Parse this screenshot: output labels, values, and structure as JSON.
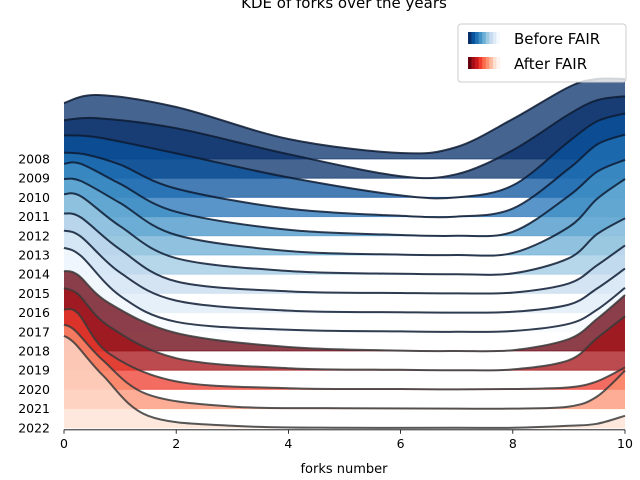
{
  "chart_data": {
    "type": "area",
    "subtype": "ridgeline-kde",
    "title": "KDE of forks over the years",
    "xlabel": "forks number",
    "ylabel": "",
    "xlim": [
      0,
      10
    ],
    "xticks": [
      0,
      2,
      4,
      6,
      8,
      10
    ],
    "grid": false,
    "legend": {
      "placement": "top-right",
      "entries": [
        {
          "label": "Before FAIR",
          "palette": "blues",
          "colors": [
            "#08306b",
            "#08519c",
            "#2171b5",
            "#4292c6",
            "#6baed6",
            "#9ecae1",
            "#c6dbef",
            "#deebf7",
            "#f7fbff"
          ]
        },
        {
          "label": "After FAIR",
          "palette": "reds",
          "colors": [
            "#67000d",
            "#a50f15",
            "#cb181d",
            "#ef3b2c",
            "#fb6a4a",
            "#fc9272",
            "#fcbba1",
            "#fee0d2",
            "#fff5f0"
          ]
        }
      ]
    },
    "series": [
      {
        "name": "2008",
        "group": "Before FAIR",
        "color": "#08306b",
        "x": [
          0,
          0.6,
          2,
          4,
          6,
          7,
          8,
          9,
          9.5,
          10
        ],
        "y": [
          1.4,
          1.6,
          1.3,
          0.5,
          0.15,
          0.3,
          1.0,
          1.8,
          2.0,
          2.0
        ]
      },
      {
        "name": "2009",
        "group": "Before FAIR",
        "color": "#08306b",
        "x": [
          0,
          0.6,
          2,
          4,
          6,
          7,
          8,
          9,
          9.5,
          10
        ],
        "y": [
          1.45,
          1.5,
          1.25,
          0.6,
          0.05,
          0.1,
          0.7,
          1.6,
          1.95,
          2.05
        ]
      },
      {
        "name": "2010",
        "group": "Before FAIR",
        "color": "#08519c",
        "x": [
          0,
          0.6,
          2,
          4,
          6,
          7,
          8,
          9,
          9.5,
          10
        ],
        "y": [
          1.55,
          1.5,
          1.1,
          0.5,
          0.05,
          0.0,
          0.3,
          1.4,
          1.9,
          2.1
        ]
      },
      {
        "name": "2011",
        "group": "Before FAIR",
        "color": "#2171b5",
        "x": [
          0,
          0.4,
          1,
          2,
          4,
          6,
          7,
          8,
          9,
          9.5,
          10
        ],
        "y": [
          1.6,
          1.55,
          1.3,
          0.7,
          0.2,
          0.02,
          0.0,
          0.2,
          1.2,
          1.8,
          2.05
        ]
      },
      {
        "name": "2012",
        "group": "Before FAIR",
        "color": "#4292c6",
        "x": [
          0,
          0.3,
          1,
          2,
          4,
          6,
          7,
          8,
          9,
          9.5,
          10
        ],
        "y": [
          1.8,
          1.8,
          1.3,
          0.6,
          0.15,
          0.02,
          0.0,
          0.1,
          1.0,
          1.6,
          1.9
        ]
      },
      {
        "name": "2013",
        "group": "Before FAIR",
        "color": "#6baed6",
        "x": [
          0,
          0.3,
          1,
          2,
          4,
          6,
          7,
          8,
          9,
          9.5,
          10
        ],
        "y": [
          1.9,
          1.85,
          1.3,
          0.5,
          0.1,
          0.01,
          0.0,
          0.05,
          0.7,
          1.4,
          1.9
        ]
      },
      {
        "name": "2014",
        "group": "Before FAIR",
        "color": "#9ecae1",
        "x": [
          0,
          0.3,
          1,
          2,
          4,
          6,
          7,
          8,
          9,
          9.5,
          10
        ],
        "y": [
          2.0,
          1.95,
          1.2,
          0.4,
          0.08,
          0.01,
          0.0,
          0.02,
          0.4,
          1.0,
          1.4
        ]
      },
      {
        "name": "2015",
        "group": "Before FAIR",
        "color": "#c6dbef",
        "x": [
          0,
          0.3,
          1,
          2,
          4,
          6,
          7,
          8,
          9,
          9.5,
          10
        ],
        "y": [
          2.0,
          1.9,
          1.1,
          0.3,
          0.05,
          0.01,
          0.0,
          0.02,
          0.25,
          0.7,
          1.2
        ]
      },
      {
        "name": "2016",
        "group": "Before FAIR",
        "color": "#deebf7",
        "x": [
          0,
          0.3,
          1,
          2,
          4,
          6,
          7,
          8,
          9,
          9.5,
          10
        ],
        "y": [
          2.05,
          1.9,
          1.0,
          0.3,
          0.05,
          0.01,
          0.0,
          0.02,
          0.2,
          0.6,
          1.1
        ]
      },
      {
        "name": "2017",
        "group": "Before FAIR",
        "color": "#f7fbff",
        "x": [
          0,
          0.3,
          1,
          2,
          4,
          6,
          7,
          8,
          9,
          9.5,
          10
        ],
        "y": [
          2.1,
          1.9,
          0.9,
          0.25,
          0.05,
          0.01,
          0.0,
          0.02,
          0.2,
          0.55,
          1.1
        ]
      },
      {
        "name": "2018",
        "group": "After FAIR",
        "color": "#67000d",
        "x": [
          0,
          0.25,
          0.8,
          2,
          4,
          6,
          7,
          8,
          9,
          9.5,
          10
        ],
        "y": [
          2.0,
          1.9,
          1.2,
          0.45,
          0.1,
          0.01,
          0.0,
          0.02,
          0.3,
          0.8,
          1.4
        ]
      },
      {
        "name": "2019",
        "group": "After FAIR",
        "color": "#a50f15",
        "x": [
          0,
          0.25,
          0.8,
          2,
          4,
          6,
          7,
          8,
          9,
          9.5,
          10
        ],
        "y": [
          2.05,
          1.9,
          1.1,
          0.3,
          0.05,
          0.01,
          0.0,
          0.02,
          0.25,
          0.8,
          1.35
        ]
      },
      {
        "name": "2020",
        "group": "After FAIR",
        "color": "#ef3b2c",
        "x": [
          0,
          0.25,
          0.8,
          2,
          4,
          6,
          7,
          8,
          9,
          9.5,
          10
        ],
        "y": [
          2.0,
          1.9,
          0.9,
          0.2,
          0.03,
          0.01,
          0.0,
          0.01,
          0.05,
          0.2,
          0.55
        ]
      },
      {
        "name": "2021",
        "group": "After FAIR",
        "color": "#fc9272",
        "x": [
          0,
          0.2,
          0.7,
          1.5,
          3,
          5,
          7,
          8,
          9,
          9.5,
          10
        ],
        "y": [
          2.1,
          1.95,
          1.2,
          0.35,
          0.05,
          0.01,
          0.0,
          0.0,
          0.05,
          0.3,
          0.95
        ]
      },
      {
        "name": "2022",
        "group": "After FAIR",
        "color": "#fee0d2",
        "x": [
          0,
          0.2,
          0.7,
          1.5,
          3,
          5,
          7,
          8,
          9,
          9.5,
          10
        ],
        "y": [
          2.3,
          2.1,
          1.3,
          0.3,
          0.05,
          0.0,
          0.0,
          0.0,
          0.05,
          0.1,
          0.3
        ]
      }
    ]
  }
}
